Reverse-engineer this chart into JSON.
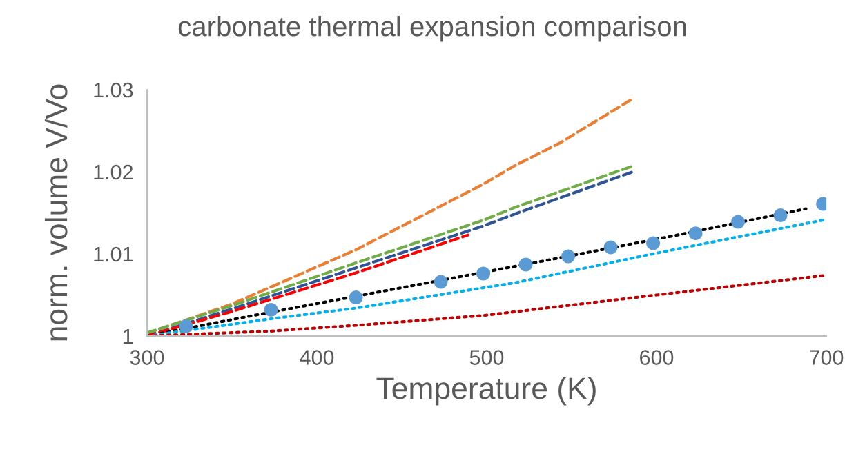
{
  "chart_data": {
    "type": "line",
    "title": "carbonate thermal expansion comparison",
    "xlabel": "Temperature (K)",
    "ylabel": "norm. volume V/Vo",
    "xlim": [
      300,
      700
    ],
    "ylim": [
      1,
      1.03
    ],
    "xticks": [
      300,
      400,
      500,
      600,
      700
    ],
    "yticks": [
      1,
      1.01,
      1.02,
      1.03
    ],
    "grid": false,
    "series": [
      {
        "type": "line",
        "color": "#ed7d31",
        "line_style": "dashed",
        "marker": "none",
        "x": [
          300,
          350,
          423,
          498,
          517,
          543,
          586
        ],
        "values": [
          1.0003,
          1.0039,
          1.0105,
          1.0185,
          1.0208,
          1.0235,
          1.0289
        ]
      },
      {
        "type": "line",
        "color": "#70ad47",
        "line_style": "dashed",
        "marker": "none",
        "x": [
          300,
          350,
          423,
          498,
          517,
          586
        ],
        "values": [
          1.0004,
          1.0037,
          1.0089,
          1.0141,
          1.0157,
          1.0207
        ]
      },
      {
        "type": "line",
        "color": "#2f5597",
        "line_style": "dashed",
        "marker": "none",
        "x": [
          300,
          350,
          423,
          498,
          517,
          586
        ],
        "values": [
          1.0,
          1.0033,
          1.0083,
          1.0134,
          1.0149,
          1.02
        ]
      },
      {
        "type": "line",
        "color": "#ff0000",
        "line_style": "dashed",
        "marker": "none",
        "x": [
          300,
          350,
          423,
          489
        ],
        "values": [
          1.0,
          1.003,
          1.0077,
          1.0123
        ]
      },
      {
        "color": "#000000",
        "line_style": "dotted",
        "marker": "none",
        "x": [
          300,
          360,
          440,
          535,
          610,
          688
        ],
        "values": [
          1.0,
          1.0024,
          1.0055,
          1.0092,
          1.0122,
          1.0155
        ]
      },
      {
        "type": "line",
        "color": "#00b0f0",
        "line_style": "dotted",
        "marker": "none",
        "x": [
          300,
          373,
          423,
          517,
          600,
          700
        ],
        "values": [
          1.0,
          1.0021,
          1.0034,
          1.0065,
          1.0101,
          1.0142
        ]
      },
      {
        "type": "line",
        "color": "#c00000",
        "line_style": "dotted",
        "marker": "none",
        "x": [
          300,
          373,
          423,
          498,
          600,
          700
        ],
        "values": [
          1.0,
          1.0006,
          1.0013,
          1.0025,
          1.005,
          1.0074
        ]
      },
      {
        "type": "scatter",
        "color": "#5b9bd5",
        "marker": "circle",
        "x": [
          323,
          373,
          423,
          473,
          498,
          523,
          548,
          573,
          598,
          623,
          648,
          673,
          698
        ],
        "values": [
          1.0012,
          1.0032,
          1.0047,
          1.0066,
          1.0076,
          1.0087,
          1.0097,
          1.0108,
          1.0113,
          1.0125,
          1.0139,
          1.0147,
          1.0161
        ]
      }
    ]
  }
}
